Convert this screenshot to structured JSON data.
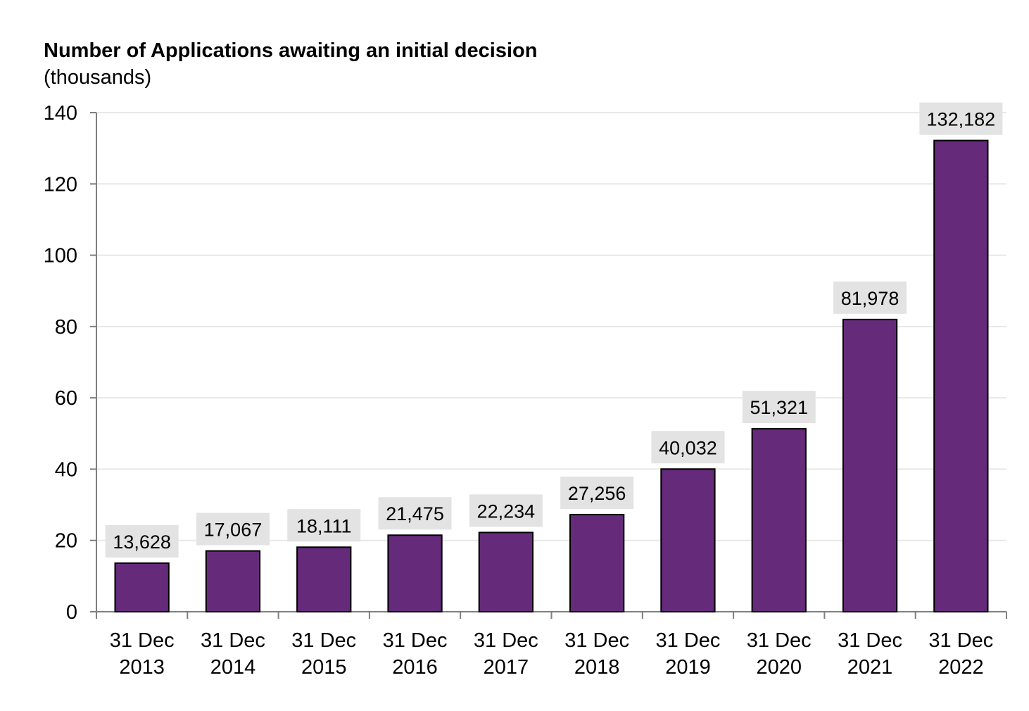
{
  "chart_data": {
    "type": "bar",
    "title": "Number of Applications awaiting an initial decision",
    "subtitle": "(thousands)",
    "xlabel": "",
    "ylabel": "",
    "ylim": [
      0,
      140
    ],
    "yticks": [
      0,
      20,
      40,
      60,
      80,
      100,
      120,
      140
    ],
    "grid": true,
    "categories": [
      [
        "31 Dec",
        "2013"
      ],
      [
        "31 Dec",
        "2014"
      ],
      [
        "31 Dec",
        "2015"
      ],
      [
        "31 Dec",
        "2016"
      ],
      [
        "31 Dec",
        "2017"
      ],
      [
        "31 Dec",
        "2018"
      ],
      [
        "31 Dec",
        "2019"
      ],
      [
        "31 Dec",
        "2020"
      ],
      [
        "31 Dec",
        "2021"
      ],
      [
        "31 Dec",
        "2022"
      ]
    ],
    "values": [
      13.628,
      17.067,
      18.111,
      21.475,
      22.234,
      27.256,
      40.032,
      51.321,
      81.978,
      132.182
    ],
    "data_labels": [
      "13,628",
      "17,067",
      "18,111",
      "21,475",
      "22,234",
      "27,256",
      "40,032",
      "51,321",
      "81,978",
      "132,182"
    ],
    "colors": {
      "bar": "#662a7b",
      "bar_edge": "#000000",
      "label_bg": "#e3e3e3",
      "grid": "#e8e8e8",
      "axis": "#7f7f7f"
    }
  }
}
